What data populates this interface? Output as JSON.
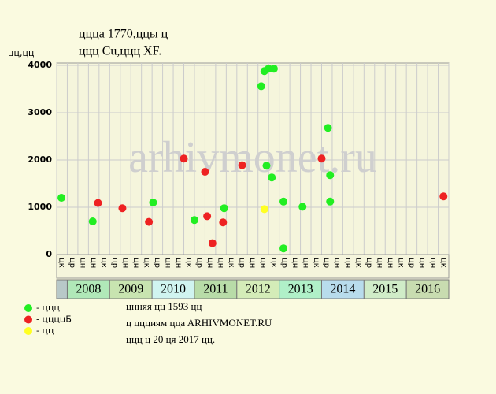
{
  "chart_data": {
    "type": "scatter",
    "title": "ццца 1770,ццы ц",
    "subtitle": "ццц Cu,ццц XF.",
    "y_label": "цц,цц",
    "watermark": "arhivmonet.ru",
    "xlim": [
      0,
      37
    ],
    "ylim": [
      0,
      4050
    ],
    "yticks": [
      0,
      1000,
      2000,
      3000,
      4000
    ],
    "grid": true,
    "background": "#f5f5dc",
    "column_labels": [
      "цк",
      "цр",
      "цн",
      "цн",
      "цк",
      "цр",
      "цн",
      "цн",
      "цк",
      "цр",
      "цн",
      "цн",
      "цк",
      "цр",
      "цн",
      "цн",
      "цк",
      "цр",
      "цн",
      "цн",
      "цк",
      "цр",
      "цн",
      "цн",
      "цк",
      "цр",
      "цн",
      "цн",
      "цк",
      "цр",
      "цн",
      "цн",
      "цк",
      "цр",
      "цн",
      "цн",
      "цк"
    ],
    "years": [
      null,
      "2008",
      "2009",
      "2010",
      "2011",
      "2012",
      "2013",
      "2014",
      "2015",
      "2016"
    ],
    "year_colors": [
      "#b8c8c8",
      "#b0e8b8",
      "#c8e4b0",
      "#d0f4f0",
      "#b8dca8",
      "#d4ecb8",
      "#b0f0c8",
      "#b8dcec",
      "#d0ecc8",
      "#c8dcb0"
    ],
    "series": [
      {
        "name": "- ццц",
        "color": "#22ee22",
        "x": [
          0.45,
          3.4,
          9.1,
          13.0,
          15.8,
          19.3,
          19.6,
          20.0,
          20.5,
          19.8,
          20.3,
          21.4,
          21.4,
          23.2,
          25.6,
          25.8,
          25.8
        ],
        "values": [
          1200,
          700,
          1100,
          730,
          980,
          3560,
          3880,
          3930,
          3930,
          1880,
          1630,
          1120,
          130,
          1010,
          2680,
          1680,
          1120
        ]
      },
      {
        "name": "- ццццБ",
        "color": "#ee2222",
        "x": [
          3.9,
          6.2,
          8.7,
          12.0,
          14.0,
          14.2,
          14.7,
          15.7,
          17.5,
          25.0,
          36.5
        ],
        "values": [
          1090,
          980,
          690,
          2030,
          1750,
          810,
          240,
          680,
          1890,
          2030,
          1230
        ]
      },
      {
        "name": "- цц",
        "color": "#ffff22",
        "x": [
          19.6
        ],
        "values": [
          960
        ]
      }
    ],
    "notes": [
      "цнняя цц 1593 цц",
      "ц ццциям ццa ARHIVMONET.RU",
      "ццц ц 20 ця 2017 цц."
    ]
  }
}
